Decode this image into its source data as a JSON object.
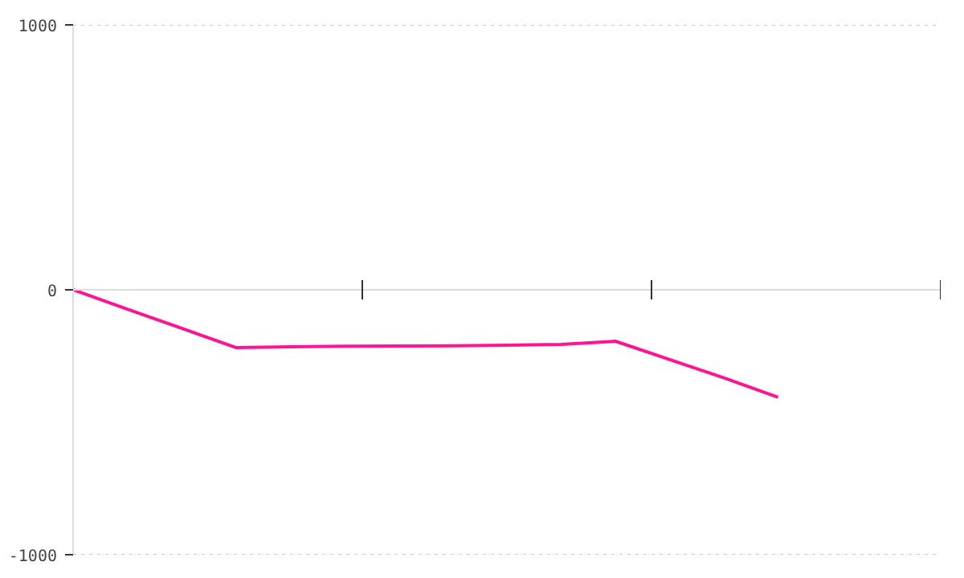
{
  "chart_data": {
    "type": "line",
    "categories": [
      null,
      null,
      null,
      null,
      null,
      null,
      null,
      null,
      null,
      null,
      null,
      null,
      null,
      null,
      null,
      null,
      null
    ],
    "series": [
      {
        "color": "#ff1493",
        "values": [
          0,
          -73,
          -145,
          -218,
          -215,
          -213,
          -212,
          -211,
          -209,
          -206,
          -194,
          -263,
          -332,
          -406,
          null,
          null,
          null
        ]
      }
    ],
    "ylim": [
      -1000,
      1000
    ],
    "yticks": [
      -1000,
      0,
      1000
    ],
    "grid": "y",
    "tick_labels": "y",
    "marker": "none",
    "line_style": "solid"
  }
}
